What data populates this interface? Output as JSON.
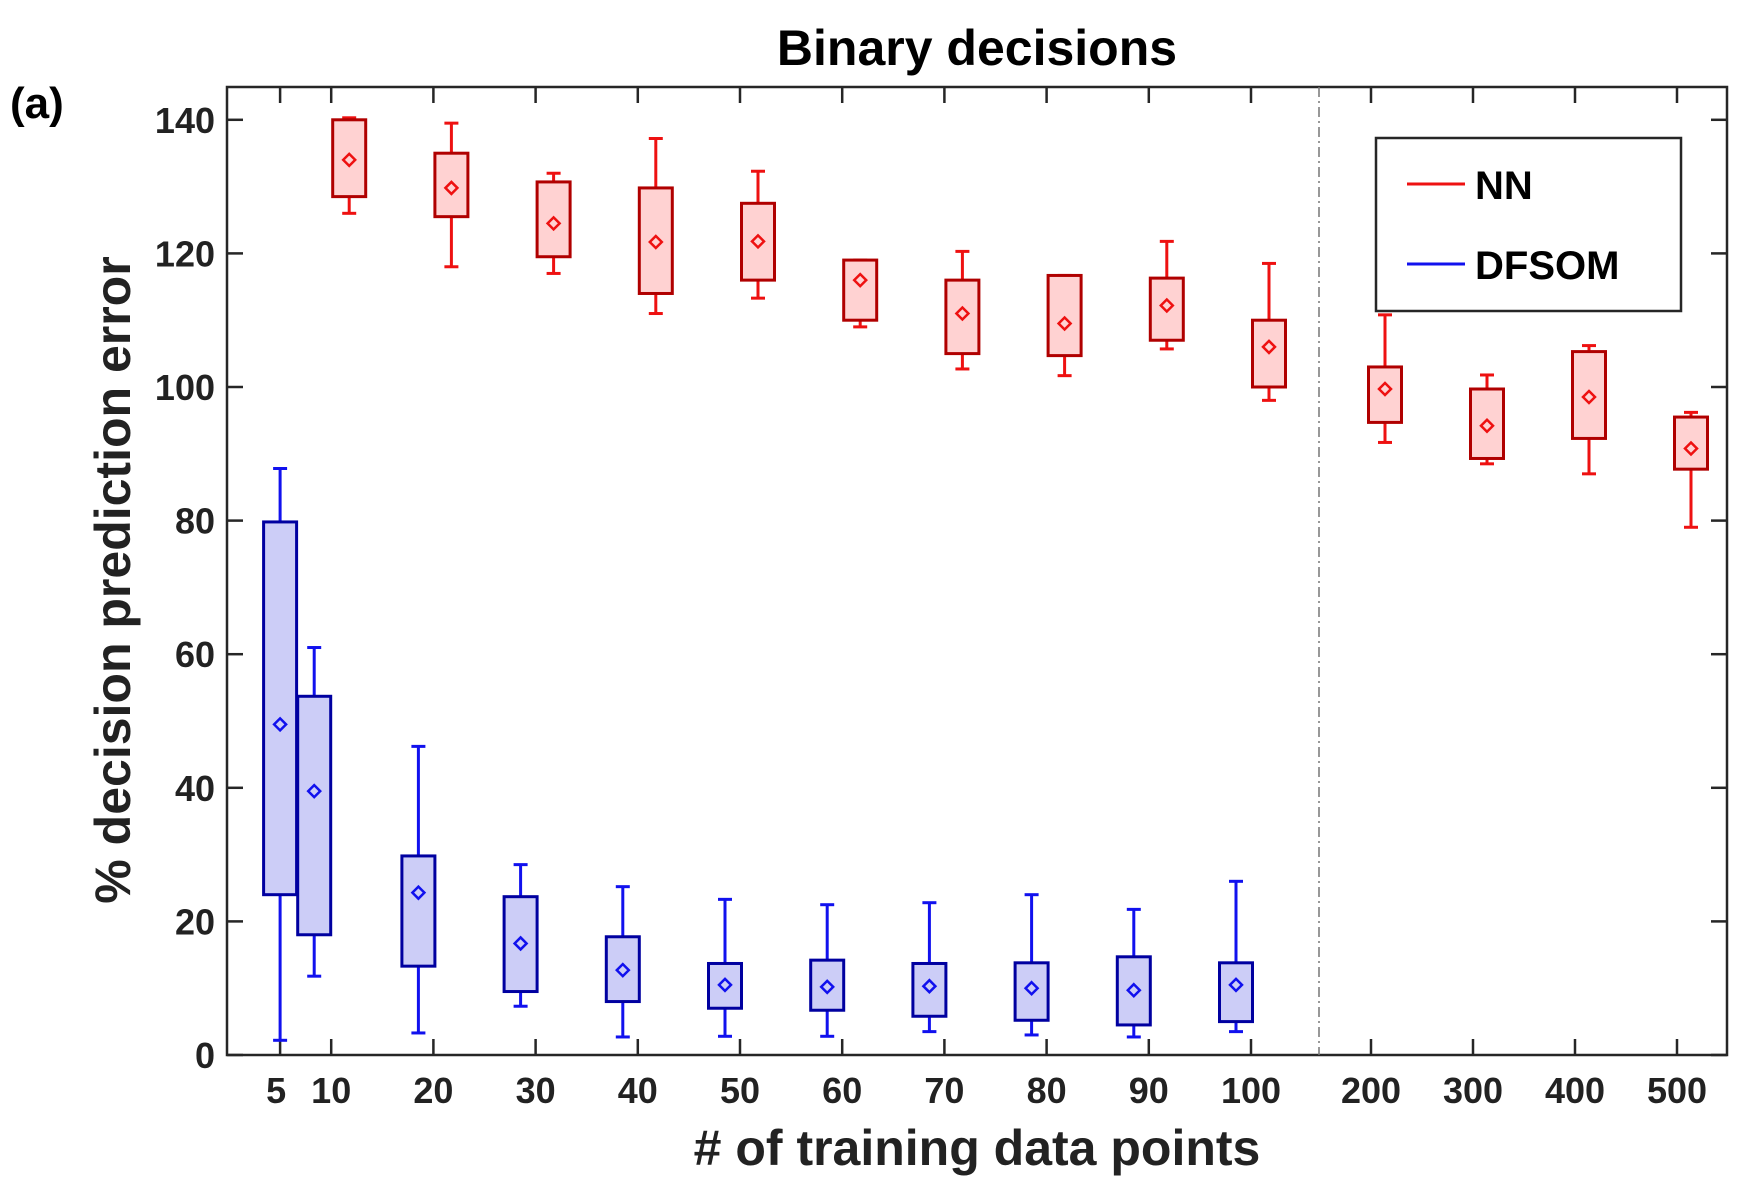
{
  "panel_label": "(a)",
  "chart_data": {
    "type": "box",
    "title": "Binary decisions",
    "xlabel": "# of training data points",
    "ylabel": "% decision prediction error",
    "ylim": [
      0,
      145
    ],
    "yticks": [
      0,
      20,
      40,
      60,
      80,
      100,
      120,
      140
    ],
    "categories": [
      "5",
      "10",
      "20",
      "30",
      "40",
      "50",
      "60",
      "70",
      "80",
      "90",
      "100",
      "200",
      "300",
      "400",
      "500"
    ],
    "legend": {
      "position": "top-right",
      "entries": [
        "NN",
        "DFSOM"
      ]
    },
    "colors": {
      "NN": "#ee1111",
      "NN_box": "#b00000",
      "NN_fill": "#ffd2d2",
      "DFSOM": "#1111ee",
      "DFSOM_box": "#0000a0",
      "DFSOM_fill": "#cccdf7"
    },
    "series": [
      {
        "name": "NN",
        "boxes": [
          {
            "x": "10",
            "whisker_low": 126,
            "q1": 128.5,
            "q3": 140,
            "whisker_high": 140.3,
            "mean": 134
          },
          {
            "x": "20",
            "whisker_low": 118,
            "q1": 125.5,
            "q3": 135,
            "whisker_high": 139.5,
            "mean": 129.8
          },
          {
            "x": "30",
            "whisker_low": 117,
            "q1": 119.5,
            "q3": 130.7,
            "whisker_high": 132,
            "mean": 124.5
          },
          {
            "x": "40",
            "whisker_low": 111,
            "q1": 114,
            "q3": 129.8,
            "whisker_high": 137.2,
            "mean": 121.7
          },
          {
            "x": "50",
            "whisker_low": 113.3,
            "q1": 116,
            "q3": 127.5,
            "whisker_high": 132.3,
            "mean": 121.8
          },
          {
            "x": "60",
            "whisker_low": 109,
            "q1": 110,
            "q3": 119,
            "whisker_high": 119,
            "mean": 116
          },
          {
            "x": "70",
            "whisker_low": 102.7,
            "q1": 105,
            "q3": 116,
            "whisker_high": 120.3,
            "mean": 111
          },
          {
            "x": "80",
            "whisker_low": 101.7,
            "q1": 104.7,
            "q3": 116.7,
            "whisker_high": 116.7,
            "mean": 109.5
          },
          {
            "x": "90",
            "whisker_low": 105.7,
            "q1": 107,
            "q3": 116.3,
            "whisker_high": 121.8,
            "mean": 112.2
          },
          {
            "x": "100",
            "whisker_low": 98,
            "q1": 100,
            "q3": 110,
            "whisker_high": 118.5,
            "mean": 106
          },
          {
            "x": "200",
            "whisker_low": 91.7,
            "q1": 94.7,
            "q3": 103,
            "whisker_high": 110.8,
            "mean": 99.7
          },
          {
            "x": "300",
            "whisker_low": 88.5,
            "q1": 89.3,
            "q3": 99.7,
            "whisker_high": 101.8,
            "mean": 94.2
          },
          {
            "x": "400",
            "whisker_low": 87,
            "q1": 92.3,
            "q3": 105.3,
            "whisker_high": 106.2,
            "mean": 98.5
          },
          {
            "x": "500",
            "whisker_low": 79,
            "q1": 87.7,
            "q3": 95.5,
            "whisker_high": 96.2,
            "mean": 90.8
          }
        ]
      },
      {
        "name": "DFSOM",
        "boxes": [
          {
            "x": "5",
            "whisker_low": 2.2,
            "q1": 24,
            "q3": 79.8,
            "whisker_high": 87.8,
            "mean": 49.5
          },
          {
            "x": "10",
            "whisker_low": 11.8,
            "q1": 18,
            "q3": 53.7,
            "whisker_high": 61,
            "mean": 39.5
          },
          {
            "x": "20",
            "whisker_low": 3.3,
            "q1": 13.3,
            "q3": 29.8,
            "whisker_high": 46.2,
            "mean": 24.3
          },
          {
            "x": "30",
            "whisker_low": 7.3,
            "q1": 9.5,
            "q3": 23.7,
            "whisker_high": 28.5,
            "mean": 16.7
          },
          {
            "x": "40",
            "whisker_low": 2.7,
            "q1": 8,
            "q3": 17.7,
            "whisker_high": 25.2,
            "mean": 12.7
          },
          {
            "x": "50",
            "whisker_low": 2.8,
            "q1": 7,
            "q3": 13.7,
            "whisker_high": 23.3,
            "mean": 10.5
          },
          {
            "x": "60",
            "whisker_low": 2.8,
            "q1": 6.7,
            "q3": 14.2,
            "whisker_high": 22.5,
            "mean": 10.2
          },
          {
            "x": "70",
            "whisker_low": 3.5,
            "q1": 5.8,
            "q3": 13.7,
            "whisker_high": 22.8,
            "mean": 10.3
          },
          {
            "x": "80",
            "whisker_low": 3,
            "q1": 5.2,
            "q3": 13.8,
            "whisker_high": 24,
            "mean": 10
          },
          {
            "x": "90",
            "whisker_low": 2.7,
            "q1": 4.5,
            "q3": 14.7,
            "whisker_high": 21.8,
            "mean": 9.7
          },
          {
            "x": "100",
            "whisker_low": 3.5,
            "q1": 5,
            "q3": 13.8,
            "whisker_high": 26,
            "mean": 10.5
          }
        ]
      }
    ]
  }
}
